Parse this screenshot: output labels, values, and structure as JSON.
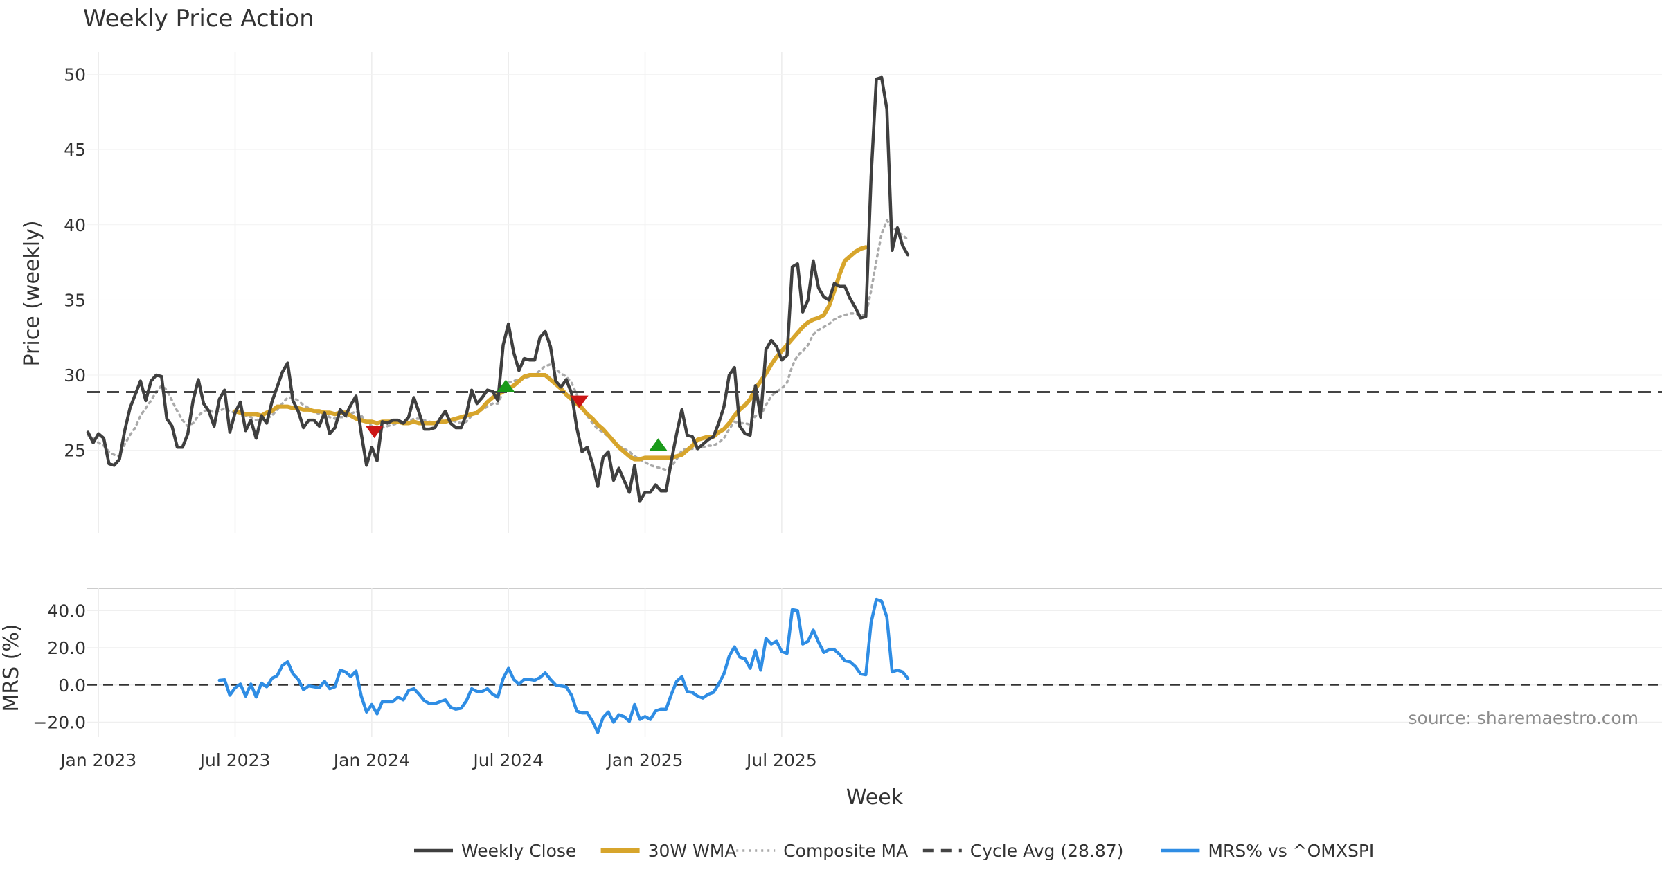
{
  "chart_data": {
    "type": "line",
    "title": "Weekly Price Action",
    "xlabel": "Week",
    "source": "source: sharemaestro.com",
    "x_ticks": [
      {
        "label": "Jan 2023",
        "week": 2
      },
      {
        "label": "Jul 2023",
        "week": 28
      },
      {
        "label": "Jan 2024",
        "week": 54
      },
      {
        "label": "Jul 2024",
        "week": 80
      },
      {
        "label": "Jan 2025",
        "week": 106
      },
      {
        "label": "Jul 2025",
        "week": 132
      }
    ],
    "price_panel": {
      "ylabel": "Price (weekly)",
      "ylim": [
        19.5,
        51.5
      ],
      "yticks": [
        25,
        30,
        35,
        40,
        45,
        50
      ],
      "series": [
        {
          "name": "Weekly Close",
          "color": "#3f3f3f",
          "style": "solid",
          "values": [
            26.2,
            25.5,
            26.1,
            25.8,
            24.1,
            24.0,
            24.4,
            26.3,
            27.8,
            28.7,
            29.6,
            28.3,
            29.6,
            30.0,
            29.9,
            27.1,
            26.6,
            25.2,
            25.2,
            26.1,
            28.3,
            29.7,
            28.1,
            27.6,
            26.6,
            28.4,
            29.0,
            26.2,
            27.5,
            28.2,
            26.3,
            27.0,
            25.8,
            27.3,
            26.8,
            28.2,
            29.2,
            30.2,
            30.8,
            28.3,
            27.6,
            26.5,
            27.0,
            27.0,
            26.6,
            27.5,
            26.1,
            26.5,
            27.7,
            27.3,
            28.0,
            28.6,
            26.1,
            24.0,
            25.2,
            24.3,
            26.9,
            26.8,
            27.0,
            27.0,
            26.8,
            27.2,
            28.5,
            27.5,
            26.4,
            26.4,
            26.5,
            27.1,
            27.6,
            26.8,
            26.5,
            26.5,
            27.4,
            29.0,
            28.1,
            28.5,
            29.0,
            28.9,
            28.3,
            32.0,
            33.4,
            31.5,
            30.3,
            31.1,
            31.0,
            31.0,
            32.5,
            32.9,
            31.9,
            29.6,
            29.2,
            29.7,
            28.8,
            26.5,
            24.9,
            25.2,
            24.1,
            22.6,
            24.5,
            24.9,
            23.0,
            23.8,
            23.0,
            22.2,
            24.0,
            21.6,
            22.2,
            22.2,
            22.7,
            22.3,
            22.3,
            24.3,
            26.1,
            27.7,
            26.0,
            25.9,
            25.1,
            25.4,
            25.7,
            25.9,
            26.8,
            27.9,
            30.0,
            30.5,
            26.6,
            26.1,
            26.0,
            29.3,
            27.2,
            31.7,
            32.3,
            31.9,
            31.0,
            31.3,
            37.2,
            37.4,
            34.2,
            35.0,
            37.6,
            35.8,
            35.2,
            35.0,
            36.1,
            35.9,
            35.9,
            35.1,
            34.5,
            33.8,
            33.9,
            43.2,
            49.7,
            49.8,
            47.7,
            38.3,
            39.8,
            38.6,
            38.0
          ]
        },
        {
          "name": "30W WMA",
          "color": "#d7a52c",
          "style": "solid",
          "start": 28,
          "values": [
            27.6,
            27.5,
            27.4,
            27.4,
            27.4,
            27.3,
            27.5,
            27.6,
            27.9,
            27.9,
            27.9,
            27.8,
            27.8,
            27.7,
            27.7,
            27.6,
            27.6,
            27.5,
            27.5,
            27.4,
            27.5,
            27.5,
            27.3,
            27.1,
            27.0,
            26.9,
            26.9,
            26.8,
            26.9,
            26.9,
            26.9,
            26.9,
            26.8,
            26.8,
            26.9,
            26.8,
            26.8,
            26.8,
            26.8,
            26.9,
            26.9,
            27.0,
            27.1,
            27.2,
            27.3,
            27.4,
            27.5,
            27.8,
            28.2,
            28.5,
            28.7,
            28.9,
            29.1,
            29.3,
            29.6,
            29.9,
            30.0,
            30.0,
            30.0,
            30.0,
            29.7,
            29.4,
            29.1,
            28.7,
            28.4,
            28.1,
            27.8,
            27.4,
            27.1,
            26.7,
            26.4,
            26.0,
            25.6,
            25.2,
            24.9,
            24.6,
            24.4,
            24.4,
            24.5,
            24.5,
            24.5,
            24.5,
            24.5,
            24.5,
            24.6,
            24.7,
            25.0,
            25.3,
            25.7,
            25.8,
            25.9,
            25.9,
            26.2,
            26.4,
            26.8,
            27.3,
            27.7,
            28.0,
            28.4,
            29.1,
            29.6,
            30.1,
            30.7,
            31.2,
            31.6,
            32.0,
            32.4,
            32.8,
            33.2,
            33.5,
            33.7,
            33.8,
            34.0,
            34.6,
            35.6,
            36.7,
            37.6,
            37.9,
            38.2,
            38.4,
            38.5
          ]
        },
        {
          "name": "Composite MA",
          "color": "#aaaaaa",
          "style": "dotted",
          "values": [
            26.0,
            25.8,
            25.5,
            25.3,
            24.9,
            24.7,
            24.6,
            25.4,
            26.0,
            26.5,
            27.3,
            27.8,
            28.3,
            28.9,
            29.3,
            29.0,
            28.3,
            27.6,
            27.0,
            26.6,
            26.8,
            27.3,
            27.6,
            27.7,
            27.5,
            27.6,
            27.8,
            27.6,
            27.5,
            27.5,
            27.3,
            27.2,
            27.0,
            27.1,
            27.1,
            27.3,
            27.7,
            28.1,
            28.5,
            28.5,
            28.3,
            28.0,
            27.8,
            27.6,
            27.4,
            27.4,
            27.2,
            27.1,
            27.2,
            27.2,
            27.4,
            27.6,
            27.3,
            26.9,
            26.6,
            26.4,
            26.5,
            26.6,
            26.7,
            26.8,
            26.9,
            26.9,
            27.1,
            27.1,
            27.0,
            26.9,
            26.8,
            26.9,
            27.0,
            27.0,
            26.9,
            26.8,
            26.9,
            27.3,
            27.5,
            27.7,
            27.9,
            28.1,
            28.1,
            28.9,
            29.5,
            29.6,
            29.7,
            29.8,
            29.9,
            30.0,
            30.3,
            30.6,
            30.7,
            30.4,
            30.1,
            29.9,
            29.5,
            28.7,
            27.9,
            27.3,
            26.8,
            26.4,
            26.2,
            25.9,
            25.6,
            25.3,
            25.1,
            24.9,
            24.6,
            24.4,
            24.2,
            24.0,
            23.9,
            23.8,
            23.7,
            23.9,
            24.4,
            25.0,
            25.1,
            25.1,
            25.1,
            25.2,
            25.3,
            25.3,
            25.5,
            25.8,
            26.4,
            26.9,
            26.8,
            26.8,
            26.7,
            27.3,
            27.3,
            28.0,
            28.6,
            28.9,
            29.1,
            29.5,
            30.6,
            31.3,
            31.6,
            32.0,
            32.7,
            33.0,
            33.2,
            33.4,
            33.7,
            33.9,
            34.0,
            34.1,
            34.1,
            34.0,
            34.0,
            35.6,
            37.6,
            39.4,
            40.3,
            39.8,
            39.6,
            39.3,
            39.0
          ]
        },
        {
          "name": "Cycle Avg (28.87)",
          "color": "#444444",
          "style": "dashed",
          "value": 28.87
        }
      ],
      "signals": [
        {
          "type": "buy",
          "week": 79.5,
          "price": 29.2,
          "color": "#1a9a1a"
        },
        {
          "type": "sell",
          "week": 54.5,
          "price": 26.3,
          "color": "#cc1515"
        },
        {
          "type": "sell",
          "week": 93.5,
          "price": 28.3,
          "color": "#cc1515"
        },
        {
          "type": "buy",
          "week": 108.5,
          "price": 25.3,
          "color": "#1a9a1a"
        }
      ]
    },
    "mrs_panel": {
      "ylabel": "MRS (%)",
      "ylim": [
        -28,
        52
      ],
      "yticks": [
        -20,
        0,
        20,
        40
      ],
      "ytick_labels": [
        "−20.0",
        "0.0",
        "20.0",
        "40.0"
      ],
      "series": [
        {
          "name": "MRS% vs ^OMXSPI",
          "color": "#2f8de4",
          "style": "solid",
          "start": 25,
          "values": [
            2.5,
            2.8,
            -5.5,
            -1.5,
            0.5,
            -6.0,
            0.5,
            -6.5,
            1.0,
            -1.0,
            3.5,
            5.0,
            10.5,
            12.5,
            6.0,
            3.0,
            -2.5,
            -0.5,
            -1.0,
            -1.5,
            2.0,
            -2.0,
            -1.0,
            8.0,
            7.0,
            4.5,
            7.5,
            -6.0,
            -14.5,
            -10.5,
            -15.5,
            -9.0,
            -9.0,
            -9.0,
            -6.5,
            -8.0,
            -3.0,
            -2.0,
            -5.0,
            -8.5,
            -10.0,
            -10.0,
            -9.0,
            -8.0,
            -12.0,
            -13.0,
            -12.5,
            -8.5,
            -2.0,
            -3.5,
            -3.5,
            -2.0,
            -5.0,
            -6.5,
            3.5,
            9.0,
            3.0,
            0.5,
            3.0,
            3.0,
            2.5,
            4.0,
            6.5,
            3.0,
            0.0,
            -0.5,
            -1.0,
            -5.5,
            -14.0,
            -15.0,
            -15.0,
            -19.5,
            -25.5,
            -17.5,
            -14.5,
            -20.0,
            -16.0,
            -17.0,
            -19.5,
            -10.5,
            -18.5,
            -17.0,
            -18.5,
            -14.0,
            -13.0,
            -13.0,
            -5.0,
            2.0,
            4.5,
            -3.5,
            -4.0,
            -6.0,
            -7.0,
            -5.0,
            -4.0,
            0.5,
            6.0,
            15.5,
            20.5,
            15.0,
            14.0,
            9.0,
            18.5,
            8.0,
            25.0,
            22.0,
            23.5,
            18.0,
            17.0,
            40.5,
            40.0,
            22.0,
            23.5,
            29.5,
            23.0,
            17.5,
            19.0,
            19.0,
            16.5,
            13.0,
            12.5,
            10.0,
            6.0,
            5.5,
            33.5,
            46.0,
            45.0,
            36.5,
            7.0,
            8.0,
            7.0,
            3.5
          ]
        },
        {
          "name": "zero",
          "color": "#333333",
          "style": "dashed",
          "value": 0
        }
      ]
    },
    "legend": [
      {
        "label": "Weekly Close",
        "color": "#3f3f3f",
        "style": "solid"
      },
      {
        "label": "30W WMA",
        "color": "#d7a52c",
        "style": "solid"
      },
      {
        "label": "Composite MA",
        "color": "#aaaaaa",
        "style": "dotted"
      },
      {
        "label": "Cycle Avg (28.87)",
        "color": "#444444",
        "style": "dashed"
      },
      {
        "label": "MRS% vs ^OMXSPI",
        "color": "#2f8de4",
        "style": "solid"
      }
    ]
  }
}
